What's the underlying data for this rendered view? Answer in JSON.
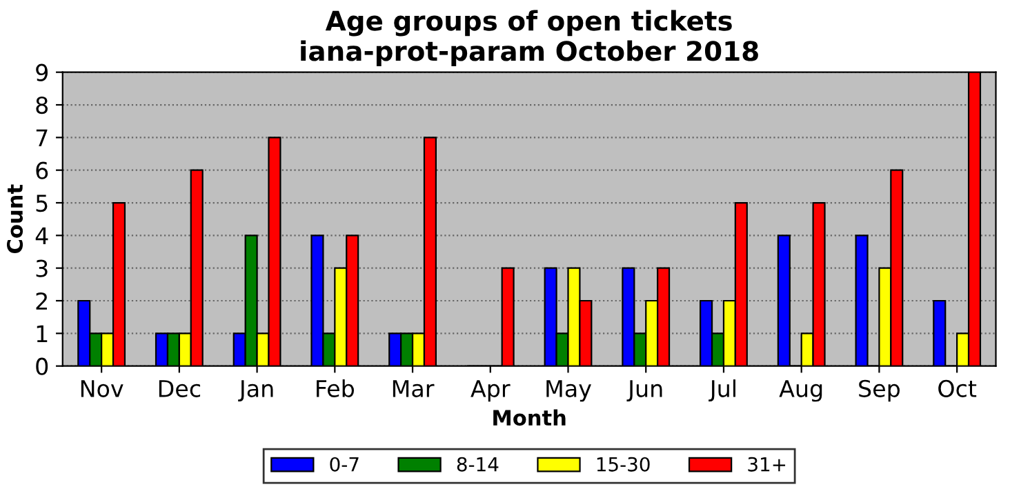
{
  "chart_data": {
    "type": "bar",
    "title": "Age groups of open tickets\niana-prot-param October 2018",
    "xlabel": "Month",
    "ylabel": "Count",
    "categories": [
      "Nov",
      "Dec",
      "Jan",
      "Feb",
      "Mar",
      "Apr",
      "May",
      "Jun",
      "Jul",
      "Aug",
      "Sep",
      "Oct"
    ],
    "series": [
      {
        "name": "0-7",
        "color": "#0000ff",
        "values": [
          2,
          1,
          1,
          4,
          1,
          0,
          3,
          3,
          2,
          4,
          4,
          2
        ]
      },
      {
        "name": "8-14",
        "color": "#008000",
        "values": [
          1,
          1,
          4,
          1,
          1,
          0,
          1,
          1,
          1,
          0,
          0,
          0
        ]
      },
      {
        "name": "15-30",
        "color": "#ffff00",
        "values": [
          1,
          1,
          1,
          3,
          1,
          0,
          3,
          2,
          2,
          1,
          3,
          1
        ]
      },
      {
        "name": "31+",
        "color": "#ff0000",
        "values": [
          5,
          6,
          7,
          4,
          7,
          3,
          2,
          3,
          5,
          5,
          6,
          9
        ]
      }
    ],
    "ylim": [
      0,
      9
    ],
    "yticks": [
      0,
      1,
      2,
      3,
      4,
      5,
      6,
      7,
      8,
      9
    ],
    "grid": "y",
    "legend": "bottom"
  }
}
